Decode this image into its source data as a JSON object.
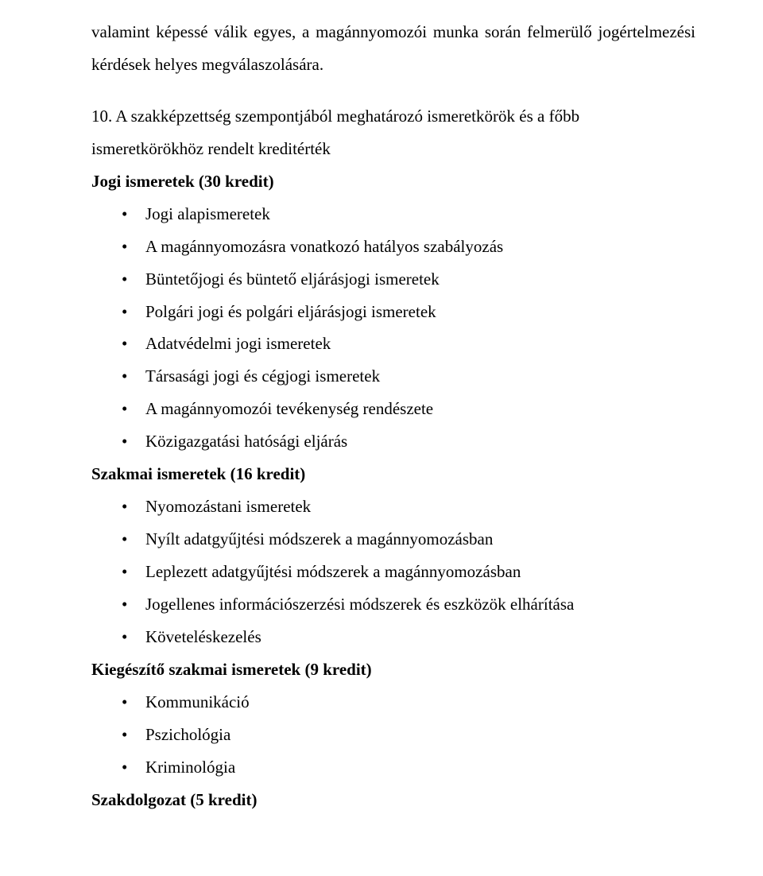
{
  "intro": "valamint képessé válik egyes, a magánnyomozói munka során felmerülő jogértelmezési kérdések helyes megválaszolására.",
  "section10": {
    "number": "10.",
    "title_line1": "A  szakképzettség  szempontjából  meghatározó  ismeretkörök  és  a  főbb",
    "title_line2": "ismeretkörökhöz rendelt kreditérték"
  },
  "group1": {
    "heading": "Jogi ismeretek (30 kredit)",
    "items": [
      "Jogi alapismeretek",
      "A magánnyomozásra vonatkozó hatályos szabályozás",
      "Büntetőjogi és büntető eljárásjogi ismeretek",
      "Polgári jogi és polgári eljárásjogi ismeretek",
      "Adatvédelmi jogi ismeretek",
      "Társasági jogi és cégjogi ismeretek",
      "A magánnyomozói tevékenység rendészete",
      "Közigazgatási hatósági eljárás"
    ]
  },
  "group2": {
    "heading": "Szakmai ismeretek (16 kredit)",
    "items": [
      "Nyomozástani ismeretek",
      "Nyílt adatgyűjtési módszerek a magánnyomozásban",
      "Leplezett adatgyűjtési módszerek a magánnyomozásban",
      "Jogellenes információszerzési módszerek és eszközök elhárítása",
      "Követeléskezelés"
    ]
  },
  "group3": {
    "heading": "Kiegészítő szakmai ismeretek (9 kredit)",
    "items": [
      "Kommunikáció",
      "Pszichológia",
      "Kriminológia"
    ]
  },
  "thesis": "Szakdolgozat (5 kredit)"
}
